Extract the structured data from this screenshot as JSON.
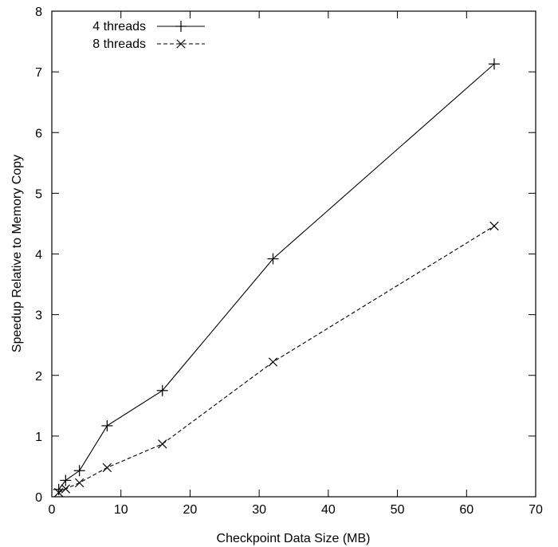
{
  "chart_data": {
    "type": "line",
    "xlabel": "Checkpoint Data Size (MB)",
    "ylabel": "Speedup Relative to Memory Copy",
    "xlim": [
      0,
      70
    ],
    "ylim": [
      0,
      8
    ],
    "xticks": [
      0,
      10,
      20,
      30,
      40,
      50,
      60,
      70
    ],
    "yticks": [
      0,
      1,
      2,
      3,
      4,
      5,
      6,
      7,
      8
    ],
    "grid": false,
    "legend_position": "top-left",
    "series": [
      {
        "name": "4 threads",
        "style": "solid",
        "marker": "plus",
        "color": "#000000",
        "x": [
          1,
          2,
          4,
          8,
          16,
          32,
          64
        ],
        "y": [
          0.12,
          0.27,
          0.43,
          1.17,
          1.75,
          3.92,
          7.13
        ]
      },
      {
        "name": "8 threads",
        "style": "dashed",
        "marker": "cross",
        "color": "#000000",
        "x": [
          1,
          2,
          4,
          8,
          16,
          32,
          64
        ],
        "y": [
          0.07,
          0.13,
          0.23,
          0.48,
          0.87,
          2.22,
          4.46
        ]
      }
    ]
  }
}
